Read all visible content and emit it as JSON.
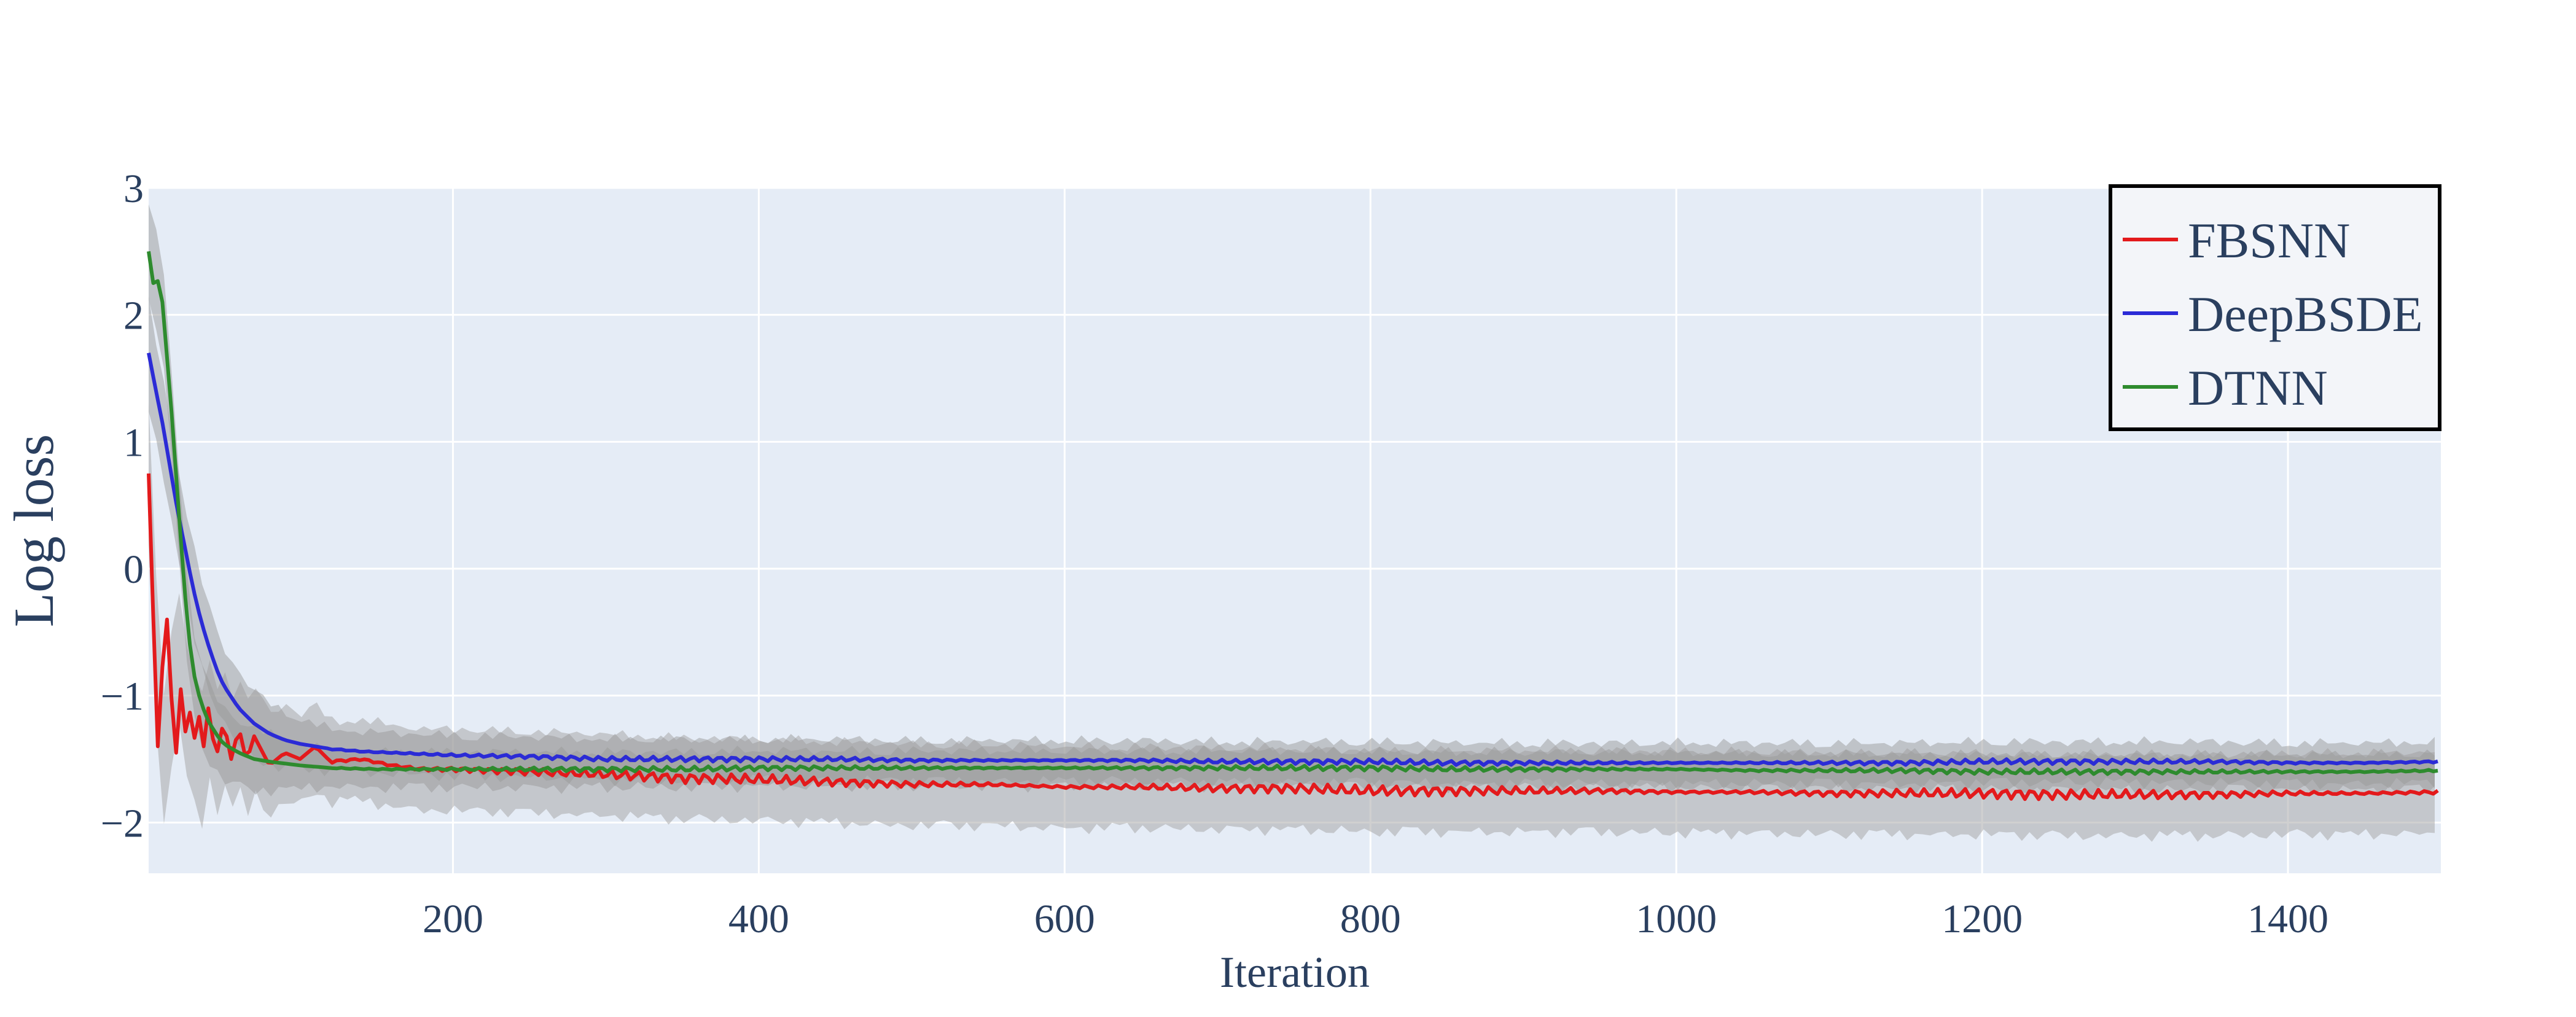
{
  "chart_data": {
    "type": "line",
    "title": "",
    "xlabel": "Iteration",
    "ylabel": "Log loss",
    "xlim": [
      1,
      1500
    ],
    "ylim": [
      -2.4,
      3
    ],
    "x_ticks": [
      200,
      400,
      600,
      800,
      1000,
      1200,
      1400
    ],
    "x_tick_labels": [
      "200",
      "400",
      "600",
      "800",
      "1000",
      "1200",
      "1400"
    ],
    "y_ticks": [
      -2,
      -1,
      0,
      1,
      2,
      3
    ],
    "y_tick_labels": [
      "−2",
      "−1",
      "0",
      "1",
      "2",
      "3"
    ],
    "grid": true,
    "legend_position": "top-right",
    "colors": {
      "plot_bg": "#e5ecf6",
      "grid": "#ffffff",
      "band_outer": "#a9a9a9",
      "band_inner": "#9a9a9a",
      "text": "#2a3f5f"
    },
    "series": [
      {
        "name": "FBSNN",
        "color": "#e31a1c",
        "x": [
          1,
          3,
          5,
          7,
          9,
          11,
          13,
          15,
          17,
          19,
          21,
          24,
          27,
          30,
          33,
          36,
          40,
          45,
          50,
          55,
          60,
          65,
          70,
          80,
          90,
          100,
          110,
          120,
          140,
          160,
          180,
          200,
          250,
          300,
          350,
          400,
          450,
          500,
          550,
          600,
          650,
          700,
          750,
          800,
          850,
          900,
          950,
          1000,
          1050,
          1100,
          1150,
          1200,
          1250,
          1300,
          1350,
          1400,
          1450,
          1500
        ],
        "y": [
          0.75,
          -0.85,
          0.1,
          -1.4,
          -0.05,
          -1.5,
          -0.4,
          -1.5,
          -0.55,
          -1.45,
          -0.7,
          -1.45,
          -0.95,
          -1.5,
          -1.0,
          -1.5,
          -1.1,
          -1.5,
          -1.2,
          -1.5,
          -1.25,
          -1.52,
          -1.32,
          -1.55,
          -1.45,
          -1.5,
          -1.4,
          -1.52,
          -1.5,
          -1.55,
          -1.58,
          -1.58,
          -1.6,
          -1.62,
          -1.65,
          -1.66,
          -1.68,
          -1.7,
          -1.7,
          -1.72,
          -1.72,
          -1.73,
          -1.73,
          -1.75,
          -1.75,
          -1.75,
          -1.75,
          -1.76,
          -1.76,
          -1.77,
          -1.77,
          -1.77,
          -1.78,
          -1.78,
          -1.78,
          -1.77,
          -1.77,
          -1.76
        ]
      },
      {
        "name": "DeepBSDE",
        "color": "#2b2bd6",
        "x": [
          1,
          5,
          10,
          15,
          20,
          25,
          30,
          35,
          40,
          45,
          50,
          60,
          70,
          80,
          90,
          100,
          120,
          140,
          160,
          180,
          200,
          250,
          300,
          350,
          400,
          450,
          500,
          550,
          600,
          650,
          700,
          750,
          800,
          850,
          900,
          950,
          1000,
          1050,
          1100,
          1150,
          1200,
          1250,
          1300,
          1350,
          1400,
          1450,
          1500
        ],
        "y": [
          1.7,
          1.45,
          1.15,
          0.8,
          0.45,
          0.15,
          -0.15,
          -0.4,
          -0.6,
          -0.78,
          -0.92,
          -1.1,
          -1.22,
          -1.3,
          -1.35,
          -1.38,
          -1.42,
          -1.44,
          -1.45,
          -1.46,
          -1.47,
          -1.48,
          -1.5,
          -1.5,
          -1.5,
          -1.5,
          -1.51,
          -1.51,
          -1.51,
          -1.51,
          -1.52,
          -1.52,
          -1.52,
          -1.53,
          -1.53,
          -1.53,
          -1.53,
          -1.53,
          -1.53,
          -1.53,
          -1.52,
          -1.52,
          -1.52,
          -1.52,
          -1.53,
          -1.53,
          -1.52
        ]
      },
      {
        "name": "DTNN",
        "color": "#2e8b2e",
        "x": [
          1,
          3,
          5,
          8,
          10,
          12,
          15,
          18,
          21,
          24,
          27,
          30,
          35,
          40,
          45,
          50,
          60,
          70,
          80,
          100,
          120,
          150,
          200,
          250,
          300,
          350,
          400,
          450,
          500,
          550,
          600,
          650,
          700,
          750,
          800,
          850,
          900,
          950,
          1000,
          1050,
          1100,
          1150,
          1200,
          1250,
          1300,
          1350,
          1400,
          1450,
          1500
        ],
        "y": [
          2.5,
          2.2,
          2.3,
          2.25,
          2.1,
          1.8,
          1.4,
          0.9,
          0.4,
          -0.1,
          -0.5,
          -0.8,
          -1.05,
          -1.2,
          -1.3,
          -1.38,
          -1.45,
          -1.5,
          -1.52,
          -1.55,
          -1.57,
          -1.58,
          -1.58,
          -1.58,
          -1.58,
          -1.58,
          -1.57,
          -1.57,
          -1.57,
          -1.57,
          -1.57,
          -1.57,
          -1.57,
          -1.57,
          -1.57,
          -1.58,
          -1.58,
          -1.58,
          -1.58,
          -1.59,
          -1.59,
          -1.59,
          -1.6,
          -1.6,
          -1.6,
          -1.6,
          -1.6,
          -1.6,
          -1.59
        ]
      }
    ]
  }
}
